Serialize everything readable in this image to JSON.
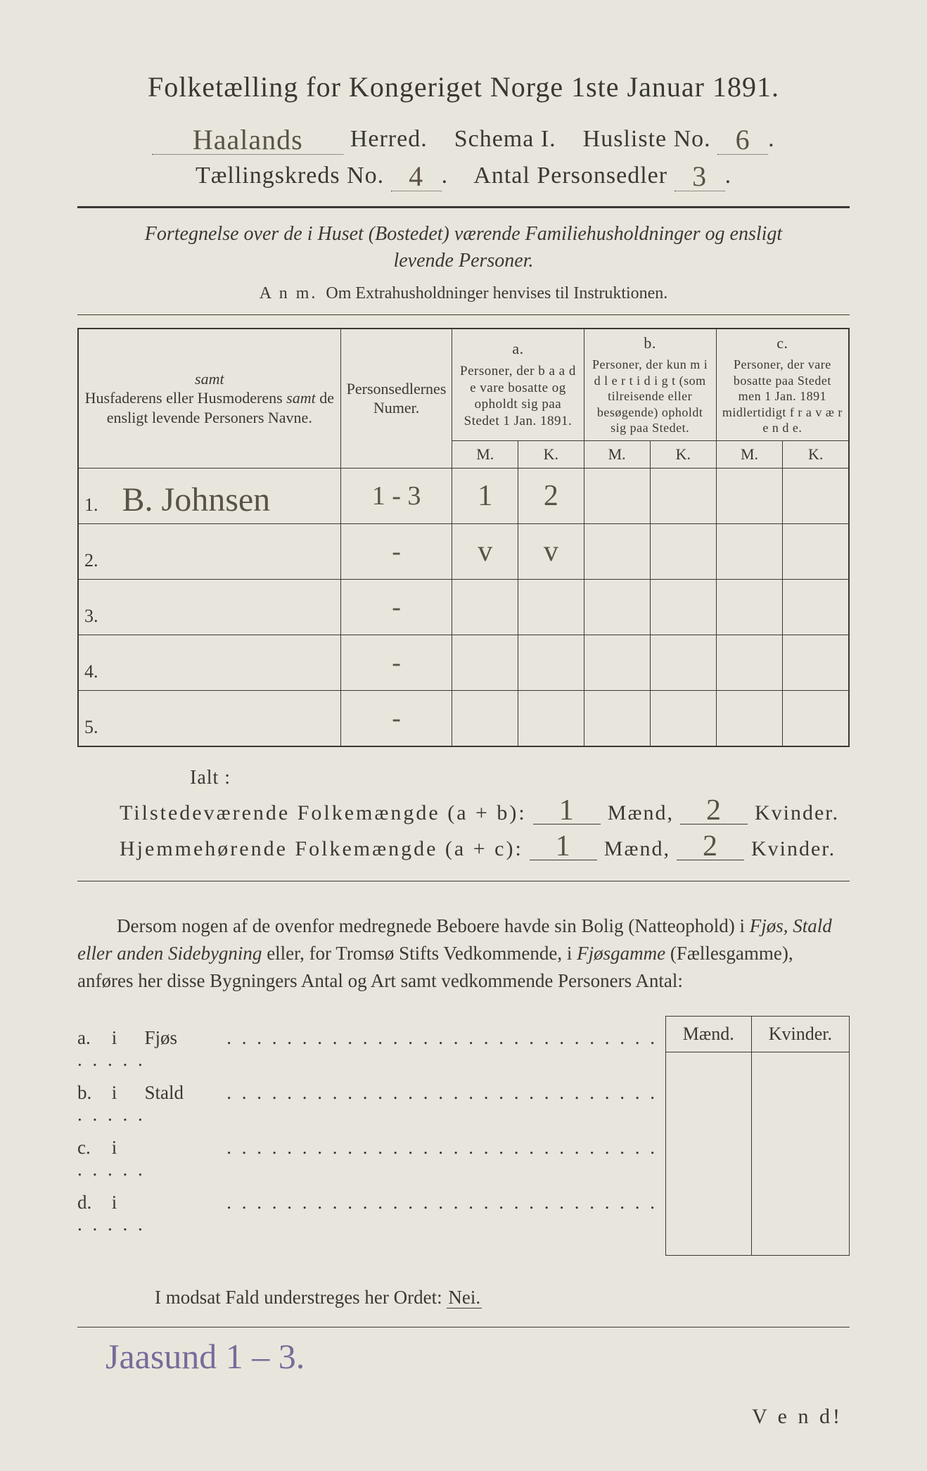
{
  "background_color": "#e8e6dc",
  "text_color": "#3a3832",
  "handwritten_color": "#5a5248",
  "footnote_color": "#7a6a9a",
  "title": "Folketælling for Kongeriget Norge 1ste Januar 1891.",
  "header": {
    "herred_value": "Haalands",
    "herred_label": "Herred.",
    "schema_label": "Schema I.",
    "husliste_label": "Husliste No.",
    "husliste_value": "6",
    "kreds_label": "Tællingskreds No.",
    "kreds_value": "4",
    "antal_label": "Antal Personsedler",
    "antal_value": "3"
  },
  "subtitle_italic": "Fortegnelse over de i Huset (Bostedet) værende Familiehusholdninger og ensligt levende Personer.",
  "anm_prefix": "A n m.",
  "anm_text": "Om Extrahusholdninger henvises til Instruktionen.",
  "main_table": {
    "col_name_header": "Husfaderens eller Husmoderens samt de ensligt levende Personers Navne.",
    "col_num_header": "Personsedlernes Numer.",
    "group_a_label": "a.",
    "group_a_text": "Personer, der b a a d e vare bosatte og opholdt sig paa Stedet 1 Jan. 1891.",
    "group_b_label": "b.",
    "group_b_text": "Personer, der kun m i d l e r t i d i g t (som tilreisende eller besøgende) opholdt sig paa Stedet.",
    "group_c_label": "c.",
    "group_c_text": "Personer, der vare bosatte paa Stedet men 1 Jan. 1891 midlertidigt f r a v æ r e n d e.",
    "m_label": "M.",
    "k_label": "K.",
    "row_labels": [
      "1.",
      "2.",
      "3.",
      "4.",
      "5."
    ],
    "rows": [
      {
        "name": "B. Johnsen",
        "num": "1 - 3",
        "a_m": "1",
        "a_k": "2",
        "b_m": "",
        "b_k": "",
        "c_m": "",
        "c_k": ""
      },
      {
        "name": "",
        "num": "-",
        "a_m": "v",
        "a_k": "v",
        "b_m": "",
        "b_k": "",
        "c_m": "",
        "c_k": ""
      },
      {
        "name": "",
        "num": "-",
        "a_m": "",
        "a_k": "",
        "b_m": "",
        "b_k": "",
        "c_m": "",
        "c_k": ""
      },
      {
        "name": "",
        "num": "-",
        "a_m": "",
        "a_k": "",
        "b_m": "",
        "b_k": "",
        "c_m": "",
        "c_k": ""
      },
      {
        "name": "",
        "num": "-",
        "a_m": "",
        "a_k": "",
        "b_m": "",
        "b_k": "",
        "c_m": "",
        "c_k": ""
      }
    ]
  },
  "totals": {
    "ialt_label": "Ialt :",
    "line_ab_label": "Tilstedeværende Folkemængde (a + b):",
    "line_ac_label": "Hjemmehørende Folkemængde (a + c):",
    "maend_label": "Mænd,",
    "kvinder_label": "Kvinder.",
    "ab_m": "1",
    "ab_k": "2",
    "ac_m": "1",
    "ac_k": "2"
  },
  "paragraph": "Dersom nogen af de ovenfor medregnede Beboere havde sin Bolig (Natteophold) i Fjøs, Stald eller anden Sidebygning eller, for Tromsø Stifts Vedkommende, i Fjøsgamme (Fællesgamme), anføres her disse Bygningers Antal og Art samt vedkommende Personers Antal:",
  "build_table": {
    "col_maend": "Mænd.",
    "col_kvinder": "Kvinder.",
    "rows": [
      {
        "tag": "a.",
        "i": "i",
        "word": "Fjøs"
      },
      {
        "tag": "b.",
        "i": "i",
        "word": "Stald"
      },
      {
        "tag": "c.",
        "i": "i",
        "word": ""
      },
      {
        "tag": "d.",
        "i": "i",
        "word": ""
      }
    ]
  },
  "nei_line_text": "I modsat Fald understreges her Ordet:",
  "nei_word": "Nei.",
  "vend": "V e n d!",
  "foot_handwritten": "Jaasund 1 – 3."
}
